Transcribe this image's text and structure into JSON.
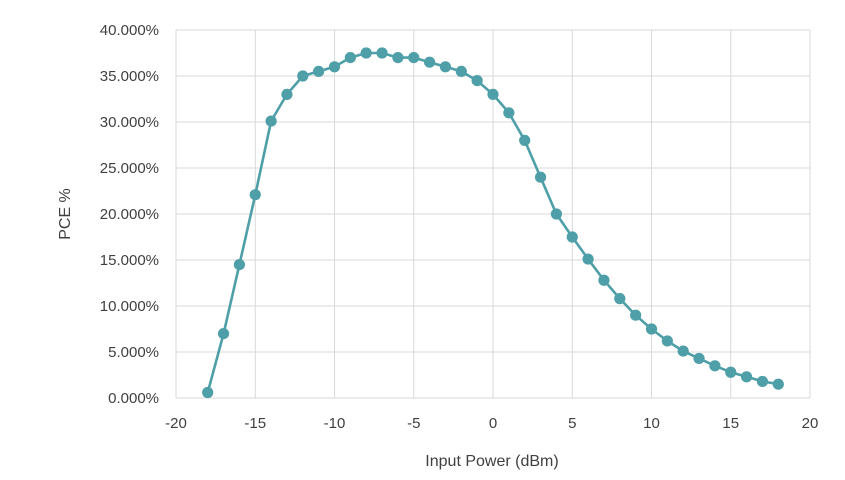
{
  "chart_data": {
    "type": "line",
    "title": "",
    "xlabel": "Input Power (dBm)",
    "ylabel": "PCE %",
    "xlim": [
      -20,
      20
    ],
    "ylim": [
      0,
      40
    ],
    "x_ticks": [
      -20,
      -15,
      -10,
      -5,
      0,
      5,
      10,
      15,
      20
    ],
    "x_tick_labels": [
      "-20",
      "-15",
      "-10",
      "-5",
      "0",
      "5",
      "10",
      "15",
      "20"
    ],
    "y_ticks": [
      0,
      5,
      10,
      15,
      20,
      25,
      30,
      35,
      40
    ],
    "y_tick_labels": [
      "0.000%",
      "5.000%",
      "10.000%",
      "15.000%",
      "20.000%",
      "25.000%",
      "30.000%",
      "35.000%",
      "40.000%"
    ],
    "grid": true,
    "legend": "none",
    "series": [
      {
        "color": "#4f9fa8",
        "marker": "circle",
        "x": [
          -18,
          -17,
          -16,
          -15,
          -14,
          -13,
          -12,
          -11,
          -10,
          -9,
          -8,
          -7,
          -6,
          -5,
          -4,
          -3,
          -2,
          -1,
          0,
          1,
          2,
          3,
          4,
          5,
          6,
          7,
          8,
          9,
          10,
          11,
          12,
          13,
          14,
          15,
          16,
          17,
          18
        ],
        "y": [
          0.6,
          7.0,
          14.5,
          22.1,
          30.1,
          33.0,
          35.0,
          35.5,
          36.0,
          37.0,
          37.5,
          37.5,
          37.0,
          37.0,
          36.5,
          36.0,
          35.5,
          34.5,
          33.0,
          31.0,
          28.0,
          24.0,
          20.0,
          17.5,
          15.1,
          12.8,
          10.8,
          9.0,
          7.5,
          6.2,
          5.1,
          4.3,
          3.5,
          2.8,
          2.3,
          1.8,
          1.5
        ]
      }
    ]
  }
}
